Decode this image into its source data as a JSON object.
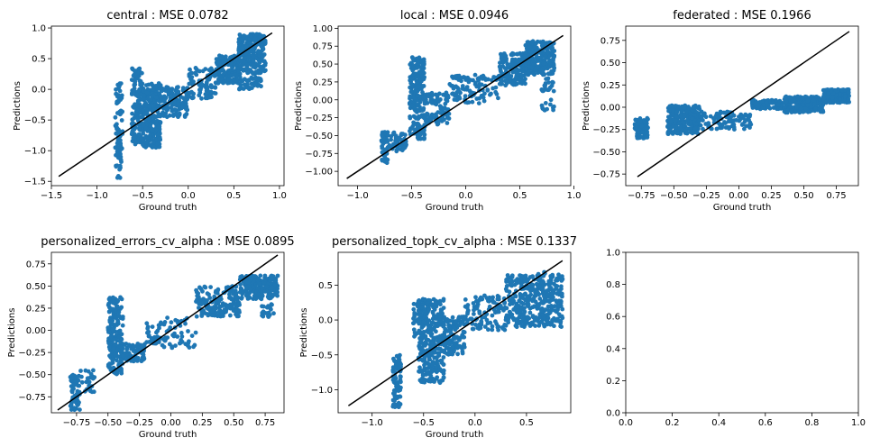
{
  "figure": {
    "background": "#ffffff",
    "point_color": "#1f77b4",
    "line_color": "#000000"
  },
  "chart_data": [
    {
      "type": "scatter",
      "title": "central : MSE 0.0782",
      "xlabel": "Ground truth",
      "ylabel": "Predictions",
      "xlim": [
        -1.5,
        1.05
      ],
      "ylim": [
        -1.57,
        1.03
      ],
      "xticks": [
        -1.5,
        -1.0,
        -0.5,
        0.0,
        0.5,
        1.0
      ],
      "xticklabels": [
        "−1.5",
        "−1.0",
        "−0.5",
        "0.0",
        "0.5",
        "1.0"
      ],
      "yticks": [
        -1.5,
        -1.0,
        -0.5,
        0.0,
        0.5,
        1.0
      ],
      "yticklabels": [
        "−1.5",
        "−1.0",
        "−0.5",
        "0.0",
        "0.5",
        "1.0"
      ],
      "identity_line": [
        [
          -1.42,
          -1.42
        ],
        [
          0.92,
          0.92
        ]
      ],
      "clusters": [
        {
          "cx": [
            -0.8,
            -0.72
          ],
          "cy": [
            -1.45,
            0.1
          ],
          "n": 90
        },
        {
          "cx": [
            -0.62,
            -0.5
          ],
          "cy": [
            -0.9,
            0.35
          ],
          "n": 120
        },
        {
          "cx": [
            -0.5,
            -0.3
          ],
          "cy": [
            -0.95,
            0.1
          ],
          "n": 260
        },
        {
          "cx": [
            -0.3,
            0.0
          ],
          "cy": [
            -0.45,
            0.05
          ],
          "n": 140
        },
        {
          "cx": [
            0.0,
            0.3
          ],
          "cy": [
            -0.15,
            0.35
          ],
          "n": 90
        },
        {
          "cx": [
            0.3,
            0.55
          ],
          "cy": [
            0.1,
            0.55
          ],
          "n": 160
        },
        {
          "cx": [
            0.55,
            0.85
          ],
          "cy": [
            0.25,
            0.9
          ],
          "n": 260
        },
        {
          "cx": [
            0.55,
            0.7
          ],
          "cy": [
            0.0,
            0.2
          ],
          "n": 25
        },
        {
          "cx": [
            0.7,
            0.8
          ],
          "cy": [
            0.05,
            0.2
          ],
          "n": 20
        }
      ]
    },
    {
      "type": "scatter",
      "title": "local : MSE 0.0946",
      "xlabel": "Ground truth",
      "ylabel": "Predictions",
      "xlim": [
        -1.18,
        0.97
      ],
      "ylim": [
        -1.2,
        1.03
      ],
      "xticks": [
        -1.0,
        -0.5,
        0.0,
        0.5,
        1.0
      ],
      "xticklabels": [
        "−1.0",
        "−0.5",
        "0.0",
        "0.5",
        "1.0"
      ],
      "yticks": [
        -1.0,
        -0.75,
        -0.5,
        -0.25,
        0.0,
        0.25,
        0.5,
        0.75,
        1.0
      ],
      "yticklabels": [
        "−1.00",
        "−0.75",
        "−0.50",
        "−0.25",
        "0.00",
        "0.25",
        "0.50",
        "0.75",
        "1.00"
      ],
      "identity_line": [
        [
          -1.1,
          -1.1
        ],
        [
          0.9,
          0.9
        ]
      ],
      "clusters": [
        {
          "cx": [
            -0.78,
            -0.72
          ],
          "cy": [
            -0.9,
            -0.45
          ],
          "n": 40
        },
        {
          "cx": [
            -0.78,
            -0.55
          ],
          "cy": [
            -0.72,
            -0.45
          ],
          "n": 60
        },
        {
          "cx": [
            -0.52,
            -0.38
          ],
          "cy": [
            -0.55,
            0.6
          ],
          "n": 220
        },
        {
          "cx": [
            -0.38,
            -0.15
          ],
          "cy": [
            -0.35,
            0.1
          ],
          "n": 80
        },
        {
          "cx": [
            -0.15,
            0.3
          ],
          "cy": [
            -0.05,
            0.35
          ],
          "n": 100
        },
        {
          "cx": [
            0.3,
            0.55
          ],
          "cy": [
            0.2,
            0.65
          ],
          "n": 140
        },
        {
          "cx": [
            0.55,
            0.82
          ],
          "cy": [
            0.35,
            0.82
          ],
          "n": 240
        },
        {
          "cx": [
            0.7,
            0.82
          ],
          "cy": [
            -0.15,
            0.0
          ],
          "n": 12
        },
        {
          "cx": [
            0.7,
            0.82
          ],
          "cy": [
            0.1,
            0.3
          ],
          "n": 20
        }
      ]
    },
    {
      "type": "scatter",
      "title": "federated : MSE 0.1966",
      "xlabel": "Ground truth",
      "ylabel": "Predictions",
      "xlim": [
        -0.87,
        0.92
      ],
      "ylim": [
        -0.88,
        0.91
      ],
      "xticks": [
        -0.75,
        -0.5,
        -0.25,
        0.0,
        0.25,
        0.5,
        0.75
      ],
      "xticklabels": [
        "−0.75",
        "−0.50",
        "−0.25",
        "0.00",
        "0.25",
        "0.50",
        "0.75"
      ],
      "yticks": [
        -0.75,
        -0.5,
        -0.25,
        0.0,
        0.25,
        0.5,
        0.75
      ],
      "yticklabels": [
        "−0.75",
        "−0.50",
        "−0.25",
        "0.00",
        "0.25",
        "0.50",
        "0.75"
      ],
      "identity_line": [
        [
          -0.78,
          -0.78
        ],
        [
          0.85,
          0.85
        ]
      ],
      "clusters": [
        {
          "cx": [
            -0.8,
            -0.7
          ],
          "cy": [
            -0.35,
            -0.12
          ],
          "n": 90
        },
        {
          "cx": [
            -0.55,
            -0.3
          ],
          "cy": [
            -0.3,
            0.02
          ],
          "n": 260
        },
        {
          "cx": [
            -0.3,
            0.1
          ],
          "cy": [
            -0.25,
            -0.05
          ],
          "n": 90
        },
        {
          "cx": [
            0.1,
            0.35
          ],
          "cy": [
            -0.02,
            0.08
          ],
          "n": 80
        },
        {
          "cx": [
            0.35,
            0.65
          ],
          "cy": [
            -0.06,
            0.12
          ],
          "n": 220
        },
        {
          "cx": [
            0.65,
            0.85
          ],
          "cy": [
            0.05,
            0.2
          ],
          "n": 200
        }
      ]
    },
    {
      "type": "scatter",
      "title": "personalized_errors_cv_alpha : MSE 0.0895",
      "xlabel": "Ground truth",
      "ylabel": "Predictions",
      "xlim": [
        -0.95,
        0.9
      ],
      "ylim": [
        -0.93,
        0.88
      ],
      "xticks": [
        -0.75,
        -0.5,
        -0.25,
        0.0,
        0.25,
        0.5,
        0.75
      ],
      "xticklabels": [
        "−0.75",
        "−0.50",
        "−0.25",
        "0.00",
        "0.25",
        "0.50",
        "0.75"
      ],
      "yticks": [
        -0.75,
        -0.5,
        -0.25,
        0.0,
        0.25,
        0.5,
        0.75
      ],
      "yticklabels": [
        "−0.75",
        "−0.50",
        "−0.25",
        "0.00",
        "0.25",
        "0.50",
        "0.75"
      ],
      "identity_line": [
        [
          -0.9,
          -0.9
        ],
        [
          0.85,
          0.85
        ]
      ],
      "clusters": [
        {
          "cx": [
            -0.8,
            -0.72
          ],
          "cy": [
            -0.9,
            -0.5
          ],
          "n": 60
        },
        {
          "cx": [
            -0.72,
            -0.6
          ],
          "cy": [
            -0.7,
            -0.45
          ],
          "n": 25
        },
        {
          "cx": [
            -0.5,
            -0.38
          ],
          "cy": [
            -0.5,
            0.38
          ],
          "n": 180
        },
        {
          "cx": [
            -0.4,
            -0.2
          ],
          "cy": [
            -0.35,
            -0.15
          ],
          "n": 90
        },
        {
          "cx": [
            -0.2,
            0.2
          ],
          "cy": [
            -0.2,
            0.15
          ],
          "n": 80
        },
        {
          "cx": [
            0.2,
            0.55
          ],
          "cy": [
            0.15,
            0.5
          ],
          "n": 160
        },
        {
          "cx": [
            0.55,
            0.85
          ],
          "cy": [
            0.35,
            0.62
          ],
          "n": 220
        },
        {
          "cx": [
            0.7,
            0.82
          ],
          "cy": [
            0.15,
            0.3
          ],
          "n": 20
        }
      ]
    },
    {
      "type": "scatter",
      "title": "personalized_topk_cv_alpha : MSE 0.1337",
      "xlabel": "Ground truth",
      "ylabel": "Predictions",
      "xlim": [
        -1.33,
        0.93
      ],
      "ylim": [
        -1.33,
        0.97
      ],
      "xticks": [
        -1.0,
        -0.5,
        0.0,
        0.5
      ],
      "xticklabels": [
        "−1.0",
        "−0.5",
        "0.0",
        "0.5"
      ],
      "yticks": [
        -1.0,
        -0.5,
        0.0,
        0.5
      ],
      "yticklabels": [
        "−1.0",
        "−0.5",
        "0.0",
        "0.5"
      ],
      "identity_line": [
        [
          -1.23,
          -1.23
        ],
        [
          0.85,
          0.85
        ]
      ],
      "clusters": [
        {
          "cx": [
            -0.8,
            -0.72
          ],
          "cy": [
            -1.25,
            -0.5
          ],
          "n": 80
        },
        {
          "cx": [
            -0.6,
            -0.5
          ],
          "cy": [
            -0.3,
            0.3
          ],
          "n": 40
        },
        {
          "cx": [
            -0.55,
            -0.3
          ],
          "cy": [
            -0.9,
            0.3
          ],
          "n": 320
        },
        {
          "cx": [
            -0.3,
            -0.1
          ],
          "cy": [
            -0.5,
            0.05
          ],
          "n": 120
        },
        {
          "cx": [
            -0.1,
            0.3
          ],
          "cy": [
            -0.15,
            0.35
          ],
          "n": 100
        },
        {
          "cx": [
            0.3,
            0.6
          ],
          "cy": [
            -0.1,
            0.65
          ],
          "n": 180
        },
        {
          "cx": [
            0.6,
            0.85
          ],
          "cy": [
            -0.1,
            0.7
          ],
          "n": 200
        }
      ]
    },
    {
      "type": "scatter",
      "title": "",
      "xlabel": "",
      "ylabel": "",
      "xlim": [
        0.0,
        1.0
      ],
      "ylim": [
        0.0,
        1.0
      ],
      "xticks": [
        0.0,
        0.2,
        0.4,
        0.6,
        0.8,
        1.0
      ],
      "xticklabels": [
        "0.0",
        "0.2",
        "0.4",
        "0.6",
        "0.8",
        "1.0"
      ],
      "yticks": [
        0.0,
        0.2,
        0.4,
        0.6,
        0.8,
        1.0
      ],
      "yticklabels": [
        "0.0",
        "0.2",
        "0.4",
        "0.6",
        "0.8",
        "1.0"
      ],
      "clusters": []
    }
  ]
}
